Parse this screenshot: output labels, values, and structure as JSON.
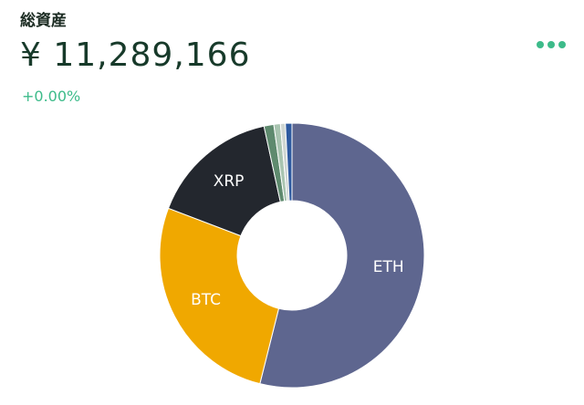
{
  "header": {
    "title": "総資産",
    "total": "¥ 11,289,166",
    "change": "+0.00%"
  },
  "chart_data": {
    "type": "pie",
    "categories": [
      "ETH",
      "BTC",
      "XRP",
      null,
      null,
      null,
      null
    ],
    "values": [
      53.9,
      26.9,
      15.8,
      1.2,
      0.8,
      0.6,
      0.8
    ],
    "colors": [
      "#5e668f",
      "#f0a800",
      "#23272e",
      "#5e8a6e",
      "#a8c4b0",
      "#cfd6d2",
      "#2e5aa0"
    ]
  }
}
